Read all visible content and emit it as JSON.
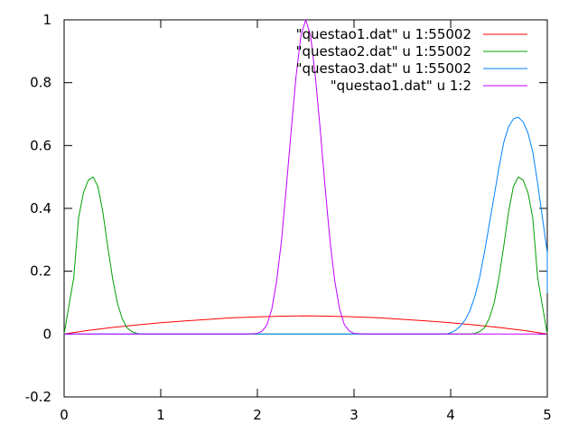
{
  "chart_data": {
    "type": "line",
    "title": "",
    "xlabel": "",
    "ylabel": "",
    "xlim": [
      0,
      5
    ],
    "ylim": [
      -0.2,
      1
    ],
    "grid": false,
    "legend_position": "top-right",
    "x_ticks": [
      0,
      1,
      2,
      3,
      4,
      5
    ],
    "y_ticks": [
      -0.2,
      0,
      0.2,
      0.4,
      0.6,
      0.8,
      1
    ],
    "x_tick_labels": [
      "0",
      "1",
      "2",
      "3",
      "4",
      "5"
    ],
    "y_tick_labels": [
      "-0.2",
      "0",
      "0.2",
      "0.4",
      "0.6",
      "0.8",
      "1"
    ],
    "series": [
      {
        "name": "\"questao1.dat\" u 1:55002",
        "color": "#ff0000",
        "x": [
          0,
          0.25,
          0.5,
          0.75,
          1,
          1.25,
          1.5,
          1.75,
          2,
          2.25,
          2.5,
          2.75,
          3,
          3.25,
          3.5,
          3.75,
          4,
          4.25,
          4.5,
          4.75,
          5
        ],
        "y": [
          0,
          0.012,
          0.021,
          0.029,
          0.036,
          0.042,
          0.047,
          0.052,
          0.055,
          0.057,
          0.058,
          0.057,
          0.055,
          0.052,
          0.047,
          0.042,
          0.036,
          0.029,
          0.021,
          0.012,
          0
        ]
      },
      {
        "name": "\"questao2.dat\" u 1:55002",
        "color": "#00a000",
        "x": [
          0,
          0.05,
          0.1,
          0.15,
          0.2,
          0.25,
          0.3,
          0.35,
          0.4,
          0.45,
          0.5,
          0.55,
          0.6,
          0.65,
          0.7,
          0.75,
          0.8,
          1,
          2,
          3,
          4,
          4.2,
          4.25,
          4.3,
          4.35,
          4.4,
          4.45,
          4.5,
          4.55,
          4.6,
          4.65,
          4.7,
          4.75,
          4.8,
          4.85,
          4.9,
          4.95,
          5
        ],
        "y": [
          0,
          0.09,
          0.18,
          0.37,
          0.45,
          0.49,
          0.5,
          0.47,
          0.39,
          0.28,
          0.18,
          0.1,
          0.05,
          0.02,
          0.008,
          0.002,
          0,
          0,
          0,
          0,
          0,
          0,
          0.002,
          0.008,
          0.02,
          0.05,
          0.1,
          0.18,
          0.28,
          0.39,
          0.47,
          0.5,
          0.49,
          0.45,
          0.37,
          0.18,
          0.09,
          0
        ]
      },
      {
        "name": "\"questao3.dat\" u 1:55002",
        "color": "#0080ff",
        "x": [
          0,
          1,
          2,
          3,
          3.95,
          4.0,
          4.05,
          4.1,
          4.15,
          4.2,
          4.25,
          4.3,
          4.35,
          4.4,
          4.45,
          4.5,
          4.55,
          4.6,
          4.65,
          4.7,
          4.75,
          4.8,
          4.85,
          4.9,
          4.95,
          5.0,
          5.0
        ],
        "y": [
          0,
          0,
          0,
          0,
          0,
          0.004,
          0.012,
          0.025,
          0.045,
          0.075,
          0.12,
          0.18,
          0.26,
          0.35,
          0.44,
          0.53,
          0.61,
          0.66,
          0.685,
          0.69,
          0.675,
          0.64,
          0.58,
          0.48,
          0.37,
          0.26,
          0.13
        ]
      },
      {
        "name": "\"questao1.dat\" u 1:2",
        "color": "#c000ff",
        "x": [
          0,
          1,
          1.9,
          2.0,
          2.05,
          2.1,
          2.15,
          2.2,
          2.25,
          2.3,
          2.35,
          2.4,
          2.45,
          2.5,
          2.55,
          2.6,
          2.65,
          2.7,
          2.75,
          2.8,
          2.85,
          2.9,
          2.95,
          3.0,
          3.1,
          4,
          5
        ],
        "y": [
          0,
          0,
          0,
          0.002,
          0.01,
          0.03,
          0.08,
          0.17,
          0.3,
          0.47,
          0.65,
          0.82,
          0.95,
          1.0,
          0.95,
          0.82,
          0.65,
          0.47,
          0.3,
          0.17,
          0.08,
          0.03,
          0.01,
          0.002,
          0,
          0,
          0
        ]
      }
    ]
  }
}
